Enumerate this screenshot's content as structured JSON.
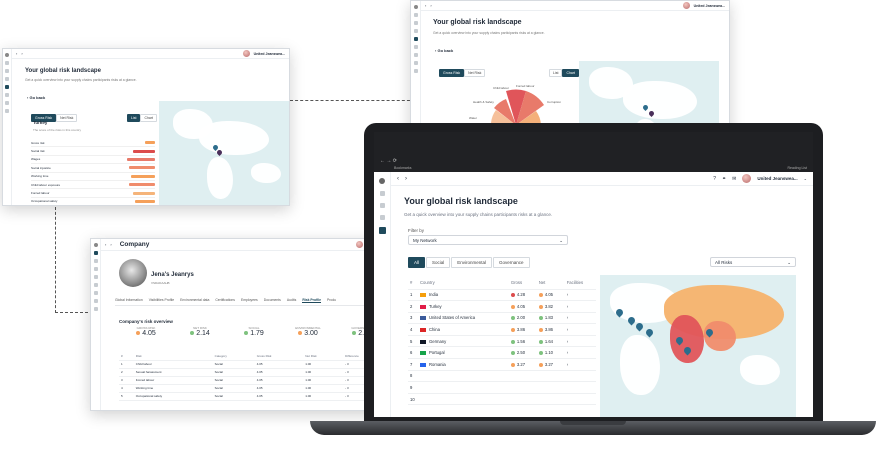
{
  "common": {
    "page_title": "Your global risk landscape",
    "subtitle": "Get a quick overview into your supply chains participants risks at a glance.",
    "user_name": "United Jeanswea...",
    "back_label": "Go back"
  },
  "win_top_right": {
    "tabs": [
      "Gross Risk",
      "Net Risk"
    ],
    "toggles": [
      "List",
      "Chart"
    ],
    "rose_labels": [
      "Child labour",
      "Forced labour",
      "Corruption",
      "Wages",
      "Discrimination",
      "Freedom of association",
      "Unethical Trade",
      "Land Grabbing",
      "Water",
      "Health & Safety"
    ]
  },
  "win_top_left": {
    "tabs": [
      "Gross Risk",
      "Net Risk"
    ],
    "toggles": [
      "List",
      "Chart"
    ],
    "country": "Turkey",
    "country_sub": "The score of the risks in this country",
    "risk_rows": [
      "Gross risk",
      "Social risk",
      "Wages",
      "Social injustice",
      "Working time",
      "Child labour exposure",
      "Forced labour",
      "Occupational safety"
    ]
  },
  "win_company": {
    "title": "Company",
    "company_name": "Jena's Jeanrys",
    "company_sub": "VSDADAAHB",
    "tabs": [
      "Global Information",
      "Visibilities Profile",
      "Environmental data",
      "Certifications",
      "Employees",
      "Documents",
      "Audits",
      "Risk Profile",
      "Produ"
    ],
    "overview_title": "Company's risk overview",
    "scores": [
      {
        "label": "GROSS RISK",
        "value": "4.05"
      },
      {
        "label": "NET RISK",
        "value": "2.14"
      },
      {
        "label": "SOCIAL",
        "value": "1.79"
      },
      {
        "label": "ENVIRONMENTAL",
        "value": "3.00"
      },
      {
        "label": "GOVERNANCE",
        "value": "2.00"
      }
    ],
    "table_headers": [
      "#",
      "Risk",
      "Category",
      "Gross Risk",
      "Net Risk",
      "Difference"
    ],
    "rows": [
      [
        "1",
        "Child labour",
        "Social",
        "4.05",
        "1.00",
        "- 3"
      ],
      [
        "2",
        "Sexual harassment",
        "Social",
        "4.05",
        "1.00",
        "- 3"
      ],
      [
        "3",
        "Forced labour",
        "Social",
        "4.05",
        "1.00",
        "- 3"
      ],
      [
        "4",
        "Working time",
        "Social",
        "4.05",
        "1.00",
        "- 3"
      ],
      [
        "5",
        "Occupational safety",
        "Social",
        "4.05",
        "1.00",
        "- 3"
      ]
    ]
  },
  "laptop": {
    "browser_tab": "Bookmarks",
    "reading_list": "Reading List",
    "filter_label": "Filter by",
    "filter_value": "My Network",
    "category_tabs": [
      "All",
      "Social",
      "Environmental",
      "Governance"
    ],
    "risk_select": "All Risks",
    "table_headers": [
      "#",
      "Country",
      "Gross",
      "Net",
      "Facilities"
    ],
    "rows": [
      {
        "n": "1",
        "country": "India",
        "gross": "4.28",
        "net": "4.05",
        "flag": "#f59e0b",
        "gc": "#dc4c4c",
        "nc": "#f5a05a"
      },
      {
        "n": "2",
        "country": "Turkey",
        "gross": "4.05",
        "net": "3.82",
        "flag": "#e11d48",
        "gc": "#f5a05a",
        "nc": "#f5a05a"
      },
      {
        "n": "3",
        "country": "United States of America",
        "gross": "2.00",
        "net": "1.83",
        "flag": "#3b5b9b",
        "gc": "#7ec27e",
        "nc": "#7ec27e"
      },
      {
        "n": "4",
        "country": "China",
        "gross": "3.86",
        "net": "3.86",
        "flag": "#dc2626",
        "gc": "#f5a05a",
        "nc": "#f5a05a"
      },
      {
        "n": "5",
        "country": "Germany",
        "gross": "1.56",
        "net": "1.64",
        "flag": "#111827",
        "gc": "#7ec27e",
        "nc": "#7ec27e"
      },
      {
        "n": "6",
        "country": "Portugal",
        "gross": "2.50",
        "net": "1.10",
        "flag": "#16a34a",
        "gc": "#7ec27e",
        "nc": "#7ec27e"
      },
      {
        "n": "7",
        "country": "Romania",
        "gross": "3.27",
        "net": "3.27",
        "flag": "#2563eb",
        "gc": "#f5a05a",
        "nc": "#f5a05a"
      }
    ],
    "extra_rows": [
      "8",
      "9",
      "10"
    ],
    "facility_chevron": "›"
  }
}
